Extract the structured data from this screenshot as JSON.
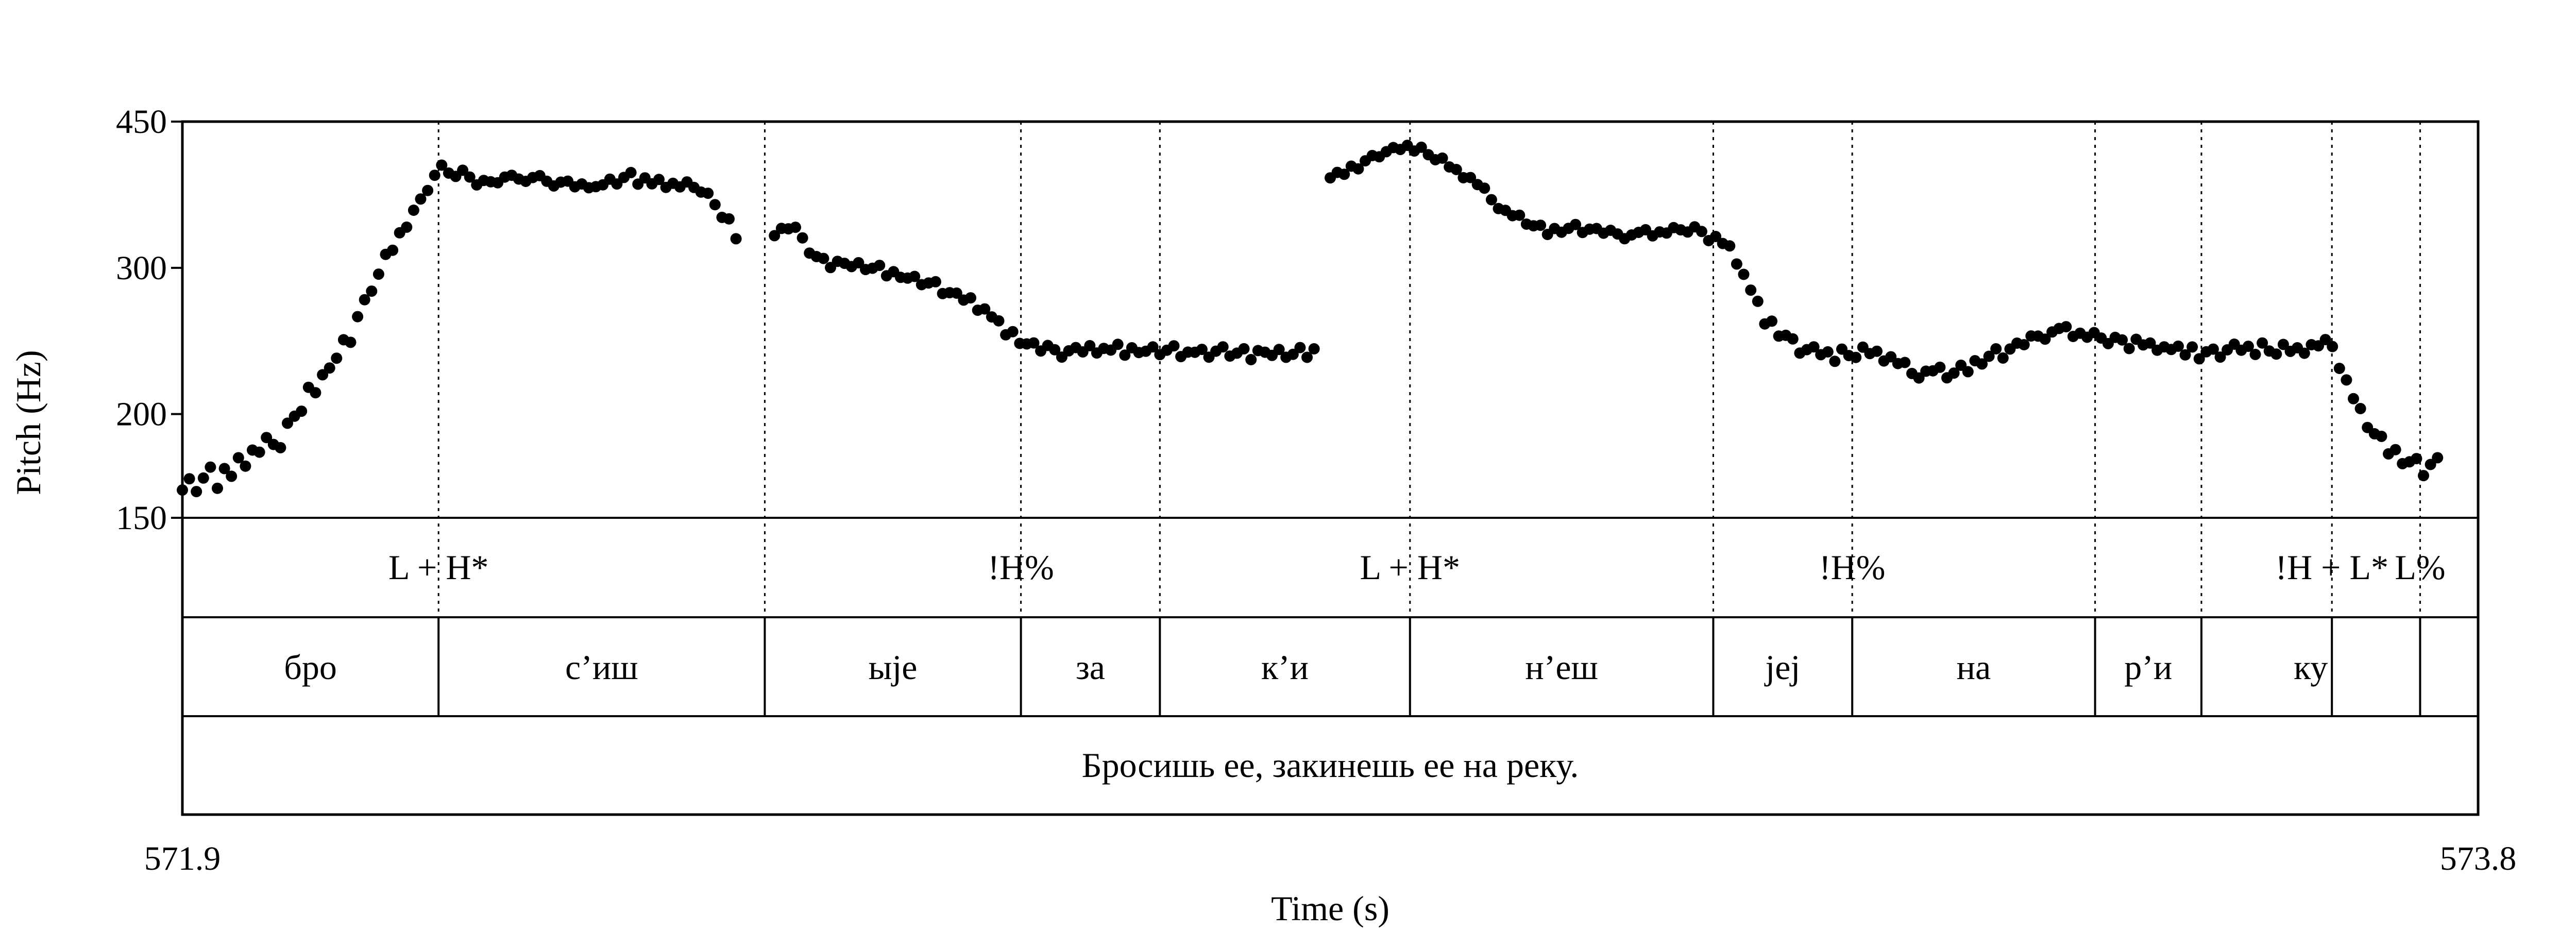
{
  "chart_data": {
    "type": "scatter",
    "title": "",
    "xlabel": "Time (s)",
    "ylabel": "Pitch (Hz)",
    "xlim": [
      571.9,
      573.8
    ],
    "ylim": [
      150,
      450
    ],
    "y_scale": "log",
    "x_tick_labels": [
      "571.9",
      "573.8"
    ],
    "y_tick_labels": [
      "150",
      "200",
      "300",
      "450"
    ],
    "y_ticks": [
      150,
      200,
      300,
      450
    ],
    "grid": false,
    "legend": "none",
    "boundaries": [
      572.112,
      572.382,
      572.594,
      572.709,
      572.916,
      573.167,
      573.282,
      573.483,
      573.571,
      573.679,
      573.752
    ],
    "tones": [
      {
        "label": "L + H*",
        "time": 572.112
      },
      {
        "label": "!H%",
        "time": 572.594
      },
      {
        "label": "L + H*",
        "time": 572.916
      },
      {
        "label": "!H%",
        "time": 573.282
      },
      {
        "label": "!H + L*",
        "time": 573.679
      },
      {
        "label": "L%",
        "time": 573.752
      }
    ],
    "syllables": [
      {
        "label": "бро",
        "start": 571.9,
        "end": 572.112
      },
      {
        "label": "с’иш",
        "start": 572.112,
        "end": 572.382
      },
      {
        "label": "ыjе",
        "start": 572.382,
        "end": 572.594
      },
      {
        "label": "за",
        "start": 572.594,
        "end": 572.709
      },
      {
        "label": "к’и",
        "start": 572.709,
        "end": 572.916
      },
      {
        "label": "н’еш",
        "start": 572.916,
        "end": 573.167
      },
      {
        "label": "jеj",
        "start": 573.167,
        "end": 573.282
      },
      {
        "label": "на",
        "start": 573.282,
        "end": 573.483
      },
      {
        "label": "р’и",
        "start": 573.483,
        "end": 573.571
      },
      {
        "label": "ку",
        "start": 573.571,
        "end": 573.752
      },
      {
        "label": "",
        "start": 573.752,
        "end": 573.8
      }
    ],
    "sentence": "Бросишь ее, закинешь ее на реку.",
    "pitch_segments": [
      {
        "name": "pitch-segment-1",
        "anchors": [
          [
            571.9,
            162
          ],
          [
            571.92,
            166
          ],
          [
            571.94,
            170
          ],
          [
            571.96,
            180
          ],
          [
            571.98,
            185
          ],
          [
            572.0,
            205
          ],
          [
            572.02,
            225
          ],
          [
            572.04,
            250
          ],
          [
            572.06,
            290
          ],
          [
            572.08,
            330
          ],
          [
            572.1,
            365
          ],
          [
            572.112,
            396
          ],
          [
            572.125,
            390
          ],
          [
            572.15,
            380
          ],
          [
            572.18,
            385
          ],
          [
            572.21,
            380
          ],
          [
            572.24,
            375
          ],
          [
            572.27,
            385
          ],
          [
            572.3,
            378
          ],
          [
            572.33,
            374
          ],
          [
            572.362,
            322
          ]
        ],
        "jitter": [
          0,
          4,
          -3,
          2,
          6,
          -5,
          3,
          -2,
          4,
          -3,
          2,
          -1,
          5,
          0,
          -4,
          3,
          1,
          -2,
          6,
          -3,
          2,
          0,
          -1,
          4,
          -5,
          2,
          3,
          -2,
          0,
          5,
          -3,
          1,
          -4,
          2,
          3,
          -1,
          0,
          4,
          -2,
          -3,
          6,
          1,
          -5,
          2,
          0,
          -2,
          3,
          4,
          -1,
          -3,
          2,
          5,
          0,
          -4,
          1,
          3,
          -2,
          2,
          -1,
          0
        ]
      },
      {
        "name": "pitch-segment-2",
        "anchors": [
          [
            572.39,
            328
          ],
          [
            572.405,
            340
          ],
          [
            572.415,
            318
          ],
          [
            572.43,
            305
          ],
          [
            572.47,
            300
          ],
          [
            572.52,
            286
          ],
          [
            572.56,
            270
          ],
          [
            572.59,
            245
          ],
          [
            572.62,
            238
          ],
          [
            572.66,
            239
          ],
          [
            572.7,
            238
          ],
          [
            572.76,
            237
          ],
          [
            572.82,
            236
          ],
          [
            572.84,
            238
          ]
        ],
        "jitter": [
          0,
          2,
          -3,
          1,
          4,
          -2,
          0,
          3,
          -4,
          2,
          1,
          -1,
          3,
          -2,
          0,
          4,
          -3,
          2,
          -1,
          0,
          3,
          -2,
          1,
          4,
          -3,
          0,
          2,
          -1,
          3,
          -4,
          1,
          0,
          2,
          -3,
          4,
          -1,
          0,
          2,
          -2,
          3,
          1,
          -4,
          0,
          2,
          -1,
          3,
          -2,
          1,
          0,
          4,
          -3,
          2,
          -1,
          0,
          3,
          -2,
          1,
          4,
          -3,
          0
        ]
      },
      {
        "name": "pitch-segment-3",
        "anchors": [
          [
            572.85,
            385
          ],
          [
            572.87,
            395
          ],
          [
            572.89,
            412
          ],
          [
            572.916,
            420
          ],
          [
            572.94,
            405
          ],
          [
            572.97,
            380
          ],
          [
            573.0,
            345
          ],
          [
            573.03,
            332
          ],
          [
            573.06,
            335
          ],
          [
            573.09,
            328
          ],
          [
            573.12,
            330
          ],
          [
            573.15,
            335
          ],
          [
            573.18,
            318
          ],
          [
            573.21,
            258
          ],
          [
            573.24,
            240
          ],
          [
            573.27,
            234
          ],
          [
            573.3,
            238
          ],
          [
            573.33,
            226
          ],
          [
            573.36,
            222
          ],
          [
            573.39,
            232
          ],
          [
            573.42,
            242
          ],
          [
            573.45,
            252
          ],
          [
            573.48,
            248
          ],
          [
            573.51,
            244
          ],
          [
            573.54,
            240
          ],
          [
            573.57,
            236
          ],
          [
            573.6,
            240
          ],
          [
            573.63,
            238
          ],
          [
            573.66,
            240
          ],
          [
            573.679,
            244
          ],
          [
            573.7,
            200
          ],
          [
            573.72,
            185
          ],
          [
            573.74,
            175
          ],
          [
            573.752,
            172
          ],
          [
            573.77,
            176
          ]
        ],
        "jitter": [
          0,
          3,
          -2,
          4,
          -3,
          1,
          2,
          -4,
          0,
          3,
          -1,
          2,
          -3,
          5,
          0,
          -2,
          4,
          -1,
          1,
          -3,
          2,
          0,
          3,
          -2,
          -4,
          1,
          2,
          5,
          -1,
          0,
          3,
          -3,
          2,
          -2,
          1,
          4,
          -4,
          0,
          2,
          -1,
          3,
          1,
          -3,
          0,
          2,
          4,
          -2,
          1,
          -1,
          3,
          0,
          -3,
          2,
          1,
          -4,
          3,
          0,
          2,
          -2,
          1
        ]
      }
    ]
  }
}
